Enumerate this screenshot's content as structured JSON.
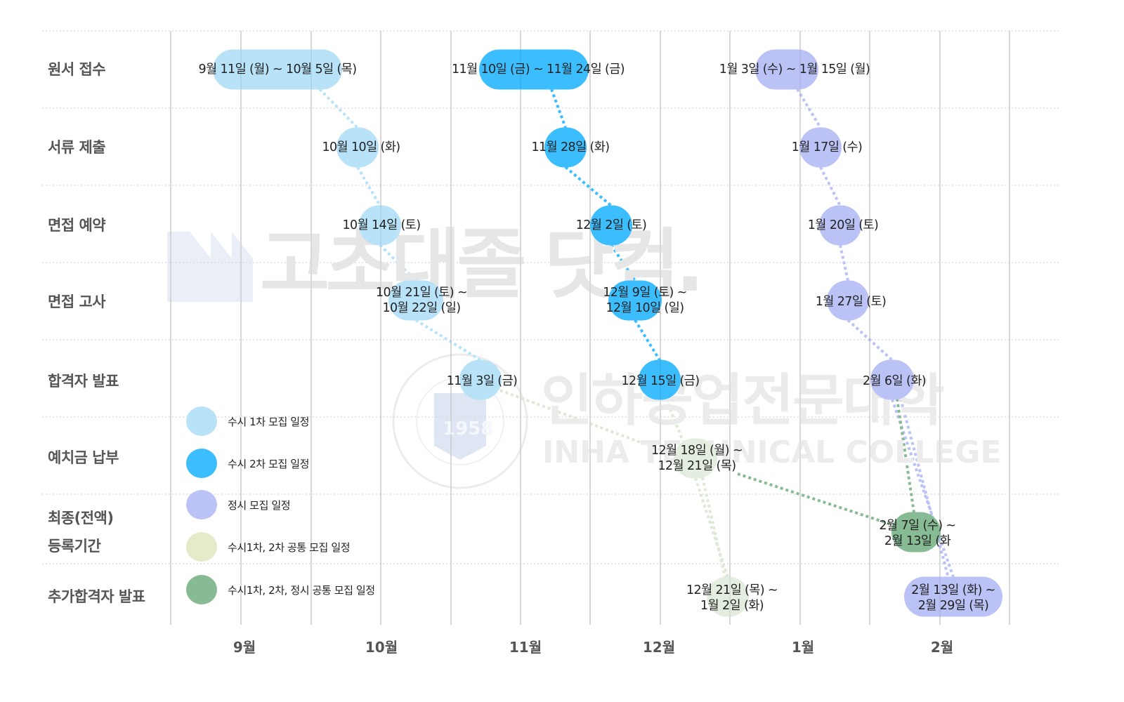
{
  "chart_data": {
    "type": "timeline",
    "title": "",
    "xlabel": "",
    "ylabel": "",
    "x_ticks": [
      "9월",
      "10월",
      "11월",
      "12월",
      "1월",
      "2월"
    ],
    "rows": [
      "원서 접수",
      "서류 제출",
      "면접 예약",
      "면접 고사",
      "합격자 발표",
      "예치금 납부",
      "최종(전액)\n등록기간",
      "추가합격자 발표"
    ],
    "legend": [
      {
        "name": "수시 1차 모집 일정",
        "color": "#B8E2F8"
      },
      {
        "name": "수시 2차 모집 일정",
        "color": "#3CBEFE"
      },
      {
        "name": "정시 모집 일정",
        "color": "#BBC2F5"
      },
      {
        "name": "수시1차, 2차 공통 모집 일정",
        "color": "#E6EAC8"
      },
      {
        "name": "수시1차, 2차, 정시 공통 모집 일정",
        "color": "#86BB94"
      }
    ],
    "series": [
      {
        "name": "수시 1차 모집 일정",
        "events": [
          {
            "row": "원서 접수",
            "label": "9월 11일 (월) ~ 10월 5일 (목)",
            "start": "09-11",
            "end": "10-05"
          },
          {
            "row": "서류 제출",
            "label": "10월 10일 (화)",
            "start": "10-10",
            "end": "10-10"
          },
          {
            "row": "면접 예약",
            "label": "10월 14일 (토)",
            "start": "10-14",
            "end": "10-14"
          },
          {
            "row": "면접 고사",
            "label": "10월 21일 (토) ~\n10월 22일 (일)",
            "start": "10-21",
            "end": "10-22"
          },
          {
            "row": "합격자 발표",
            "label": "11월 3일 (금)",
            "start": "11-03",
            "end": "11-03"
          }
        ]
      },
      {
        "name": "수시 2차 모집 일정",
        "events": [
          {
            "row": "원서 접수",
            "label": "11월 10일 (금) ~ 11월 24일 (금)",
            "start": "11-10",
            "end": "11-24"
          },
          {
            "row": "서류 제출",
            "label": "11월 28일 (화)",
            "start": "11-28",
            "end": "11-28"
          },
          {
            "row": "면접 예약",
            "label": "12월 2일 (토)",
            "start": "12-02",
            "end": "12-02"
          },
          {
            "row": "면접 고사",
            "label": "12월 9일 (토) ~\n12월 10일 (일)",
            "start": "12-09",
            "end": "12-10"
          },
          {
            "row": "합격자 발표",
            "label": "12월 15일 (금)",
            "start": "12-15",
            "end": "12-15"
          }
        ]
      },
      {
        "name": "정시 모집 일정",
        "events": [
          {
            "row": "원서 접수",
            "label": "1월 3일 (수) ~ 1월 15일 (월)",
            "start": "01-03",
            "end": "01-15"
          },
          {
            "row": "서류 제출",
            "label": "1월 17일 (수)",
            "start": "01-17",
            "end": "01-17"
          },
          {
            "row": "면접 예약",
            "label": "1월 20일 (토)",
            "start": "01-20",
            "end": "01-20"
          },
          {
            "row": "면접 고사",
            "label": "1월 27일 (토)",
            "start": "01-27",
            "end": "01-27"
          },
          {
            "row": "합격자 발표",
            "label": "2월 6일 (화)",
            "start": "02-06",
            "end": "02-06"
          },
          {
            "row": "추가합격자 발표",
            "label": "2월 13일 (화) ~\n2월 29일 (목)",
            "start": "02-13",
            "end": "02-29"
          }
        ]
      },
      {
        "name": "수시1차, 2차 공통 모집 일정",
        "events": [
          {
            "row": "예치금 납부",
            "label": "12월 18일 (월) ~\n12월 21일 (목)",
            "start": "12-18",
            "end": "12-21"
          },
          {
            "row": "추가합격자 발표",
            "label": "12월 21일 (목) ~\n1월 2일 (화)",
            "start": "12-21",
            "end": "01-02"
          }
        ]
      },
      {
        "name": "수시1차, 2차, 정시 공통 모집 일정",
        "events": [
          {
            "row": "최종(전액)\n등록기간",
            "label": "2월 7일 (수) ~\n2월 13일 (화",
            "start": "02-07",
            "end": "02-13"
          }
        ]
      }
    ],
    "grid": true,
    "legend_position": "inside-left"
  },
  "watermarks": {
    "brand": "고초대졸 닷컴.",
    "college_ko": "인하공업전문대학",
    "college_en": "INHA TECHNICAL COLLEGE",
    "seal_year": "1958"
  }
}
